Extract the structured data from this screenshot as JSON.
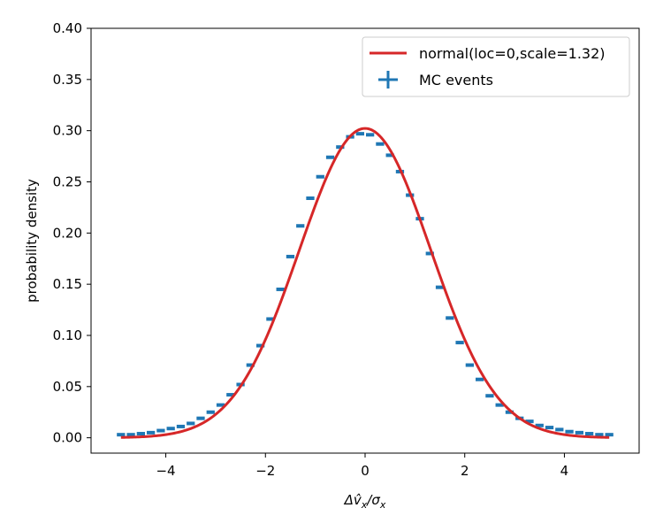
{
  "chart_data": {
    "type": "line",
    "xlabel": "Δv̂x/σx",
    "ylabel": "probability density",
    "xlim": [
      -5.5,
      5.5
    ],
    "ylim": [
      -0.015,
      0.4
    ],
    "x_ticks": [
      -4,
      -2,
      0,
      2,
      4
    ],
    "x_tick_labels": [
      "−4",
      "−2",
      "0",
      "2",
      "4"
    ],
    "y_ticks": [
      0.0,
      0.05,
      0.1,
      0.15,
      0.2,
      0.25,
      0.3,
      0.35,
      0.4
    ],
    "y_tick_labels": [
      "0.00",
      "0.05",
      "0.10",
      "0.15",
      "0.20",
      "0.25",
      "0.30",
      "0.35",
      "0.40"
    ],
    "grid": false,
    "legend_position": "top-right",
    "colors": {
      "curve": "#d62728",
      "points": "#1f77b4",
      "axes": "#000000"
    },
    "series": [
      {
        "name": "normal(loc=0,scale=1.32)",
        "kind": "line",
        "distribution": {
          "loc": 0,
          "scale": 1.32
        },
        "x_range": [
          -4.9,
          4.9
        ]
      },
      {
        "name": "MC events",
        "kind": "errorbar",
        "bin_width": 0.2,
        "x": [
          -4.9,
          -4.7,
          -4.5,
          -4.3,
          -4.1,
          -3.9,
          -3.7,
          -3.5,
          -3.3,
          -3.1,
          -2.9,
          -2.7,
          -2.5,
          -2.3,
          -2.1,
          -1.9,
          -1.7,
          -1.5,
          -1.3,
          -1.1,
          -0.9,
          -0.7,
          -0.5,
          -0.3,
          -0.1,
          0.1,
          0.3,
          0.5,
          0.7,
          0.9,
          1.1,
          1.3,
          1.5,
          1.7,
          1.9,
          2.1,
          2.3,
          2.5,
          2.7,
          2.9,
          3.1,
          3.3,
          3.5,
          3.7,
          3.9,
          4.1,
          4.3,
          4.5,
          4.7,
          4.9
        ],
        "y": [
          0.003,
          0.003,
          0.004,
          0.005,
          0.007,
          0.009,
          0.011,
          0.014,
          0.019,
          0.025,
          0.032,
          0.042,
          0.052,
          0.071,
          0.09,
          0.116,
          0.145,
          0.177,
          0.207,
          0.234,
          0.255,
          0.274,
          0.284,
          0.294,
          0.297,
          0.296,
          0.287,
          0.276,
          0.26,
          0.237,
          0.214,
          0.18,
          0.147,
          0.117,
          0.093,
          0.071,
          0.057,
          0.041,
          0.032,
          0.025,
          0.019,
          0.016,
          0.012,
          0.01,
          0.008,
          0.006,
          0.005,
          0.004,
          0.003,
          0.003
        ]
      }
    ]
  }
}
